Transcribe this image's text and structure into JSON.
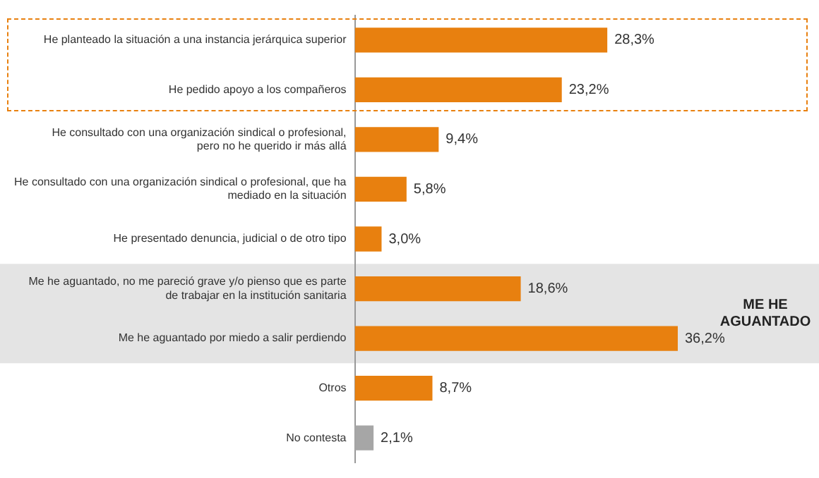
{
  "chart_data": {
    "type": "bar",
    "orientation": "horizontal",
    "categories": [
      "He planteado la situación a una instancia jerárquica superior",
      "He pedido apoyo a los compañeros",
      "He consultado con una organización sindical o profesional,\npero no he querido ir más allá",
      "He consultado con una organización sindical o profesional, que ha\nmediado en la situación",
      "He presentado denuncia, judicial o de otro tipo",
      "Me he aguantado, no me pareció grave y/o pienso que es parte\nde trabajar en la institución sanitaria",
      "Me he aguantado por miedo a salir perdiendo",
      "Otros",
      "No contesta"
    ],
    "values": [
      28.3,
      23.2,
      9.4,
      5.8,
      3.0,
      18.6,
      36.2,
      8.7,
      2.1
    ],
    "value_labels": [
      "28,3%",
      "23,2%",
      "9,4%",
      "5,8%",
      "3,0%",
      "18,6%",
      "36,2%",
      "8,7%",
      "2,1%"
    ],
    "colors": [
      "#e8800f",
      "#e8800f",
      "#e8800f",
      "#e8800f",
      "#e8800f",
      "#e8800f",
      "#e8800f",
      "#e8800f",
      "#a6a6a6"
    ],
    "bands": [
      {
        "axis": "y",
        "from": "Me he aguantado, no me pareció grave y/o pienso que es parte\nde trabajar en la institución sanitaria",
        "to": "Me he aguantado por miedo a salir perdiendo",
        "label": "ME HE\nAGUANTADO",
        "color": "#e4e4e4"
      }
    ],
    "grid": false,
    "legend": false
  }
}
